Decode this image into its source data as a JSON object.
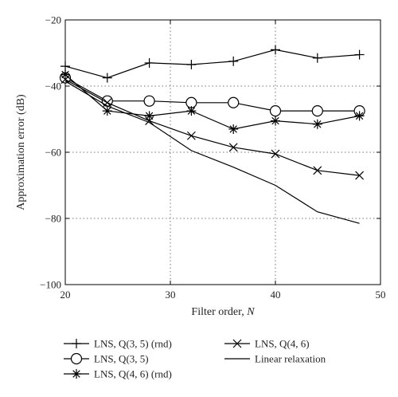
{
  "chart_data": {
    "type": "line",
    "xlabel": "Filter order, N",
    "ylabel": "Approximation error (dB)",
    "xlim": [
      20,
      50
    ],
    "ylim": [
      -100,
      -20
    ],
    "xticks": [
      20,
      30,
      40,
      50
    ],
    "yticks": [
      -20,
      -40,
      -60,
      -80,
      -100
    ],
    "grid": true,
    "legend_position": "below",
    "series": [
      {
        "name": "LNS, Q(3, 5) (rnd)",
        "marker": "plus",
        "x": [
          20,
          24,
          28,
          32,
          36,
          40,
          44,
          48
        ],
        "y": [
          -34,
          -37.5,
          -33,
          -33.5,
          -32.5,
          -29,
          -31.5,
          -30.5
        ]
      },
      {
        "name": "LNS, Q(3, 5)",
        "marker": "circle",
        "x": [
          20,
          24,
          28,
          32,
          36,
          40,
          44,
          48
        ],
        "y": [
          -37.5,
          -44.5,
          -44.5,
          -45,
          -45,
          -47.5,
          -47.5,
          -47.5
        ]
      },
      {
        "name": "LNS, Q(4, 6) (rnd)",
        "marker": "asterisk",
        "x": [
          20,
          24,
          28,
          32,
          36,
          40,
          44,
          48
        ],
        "y": [
          -36.5,
          -47.5,
          -49,
          -47.5,
          -53,
          -50.5,
          -51.5,
          -49
        ]
      },
      {
        "name": "LNS, Q(4, 6)",
        "marker": "x",
        "x": [
          20,
          24,
          28,
          32,
          36,
          40,
          44,
          48
        ],
        "y": [
          -38,
          -45,
          -50.5,
          -55,
          -58.5,
          -60.5,
          -65.5,
          -67
        ]
      },
      {
        "name": "Linear relaxation",
        "marker": "none",
        "x": [
          20,
          24,
          28,
          32,
          36,
          40,
          44,
          48
        ],
        "y": [
          -38.5,
          -46,
          -51,
          -59.5,
          -64.5,
          -70,
          -78,
          -81.5
        ]
      }
    ]
  }
}
